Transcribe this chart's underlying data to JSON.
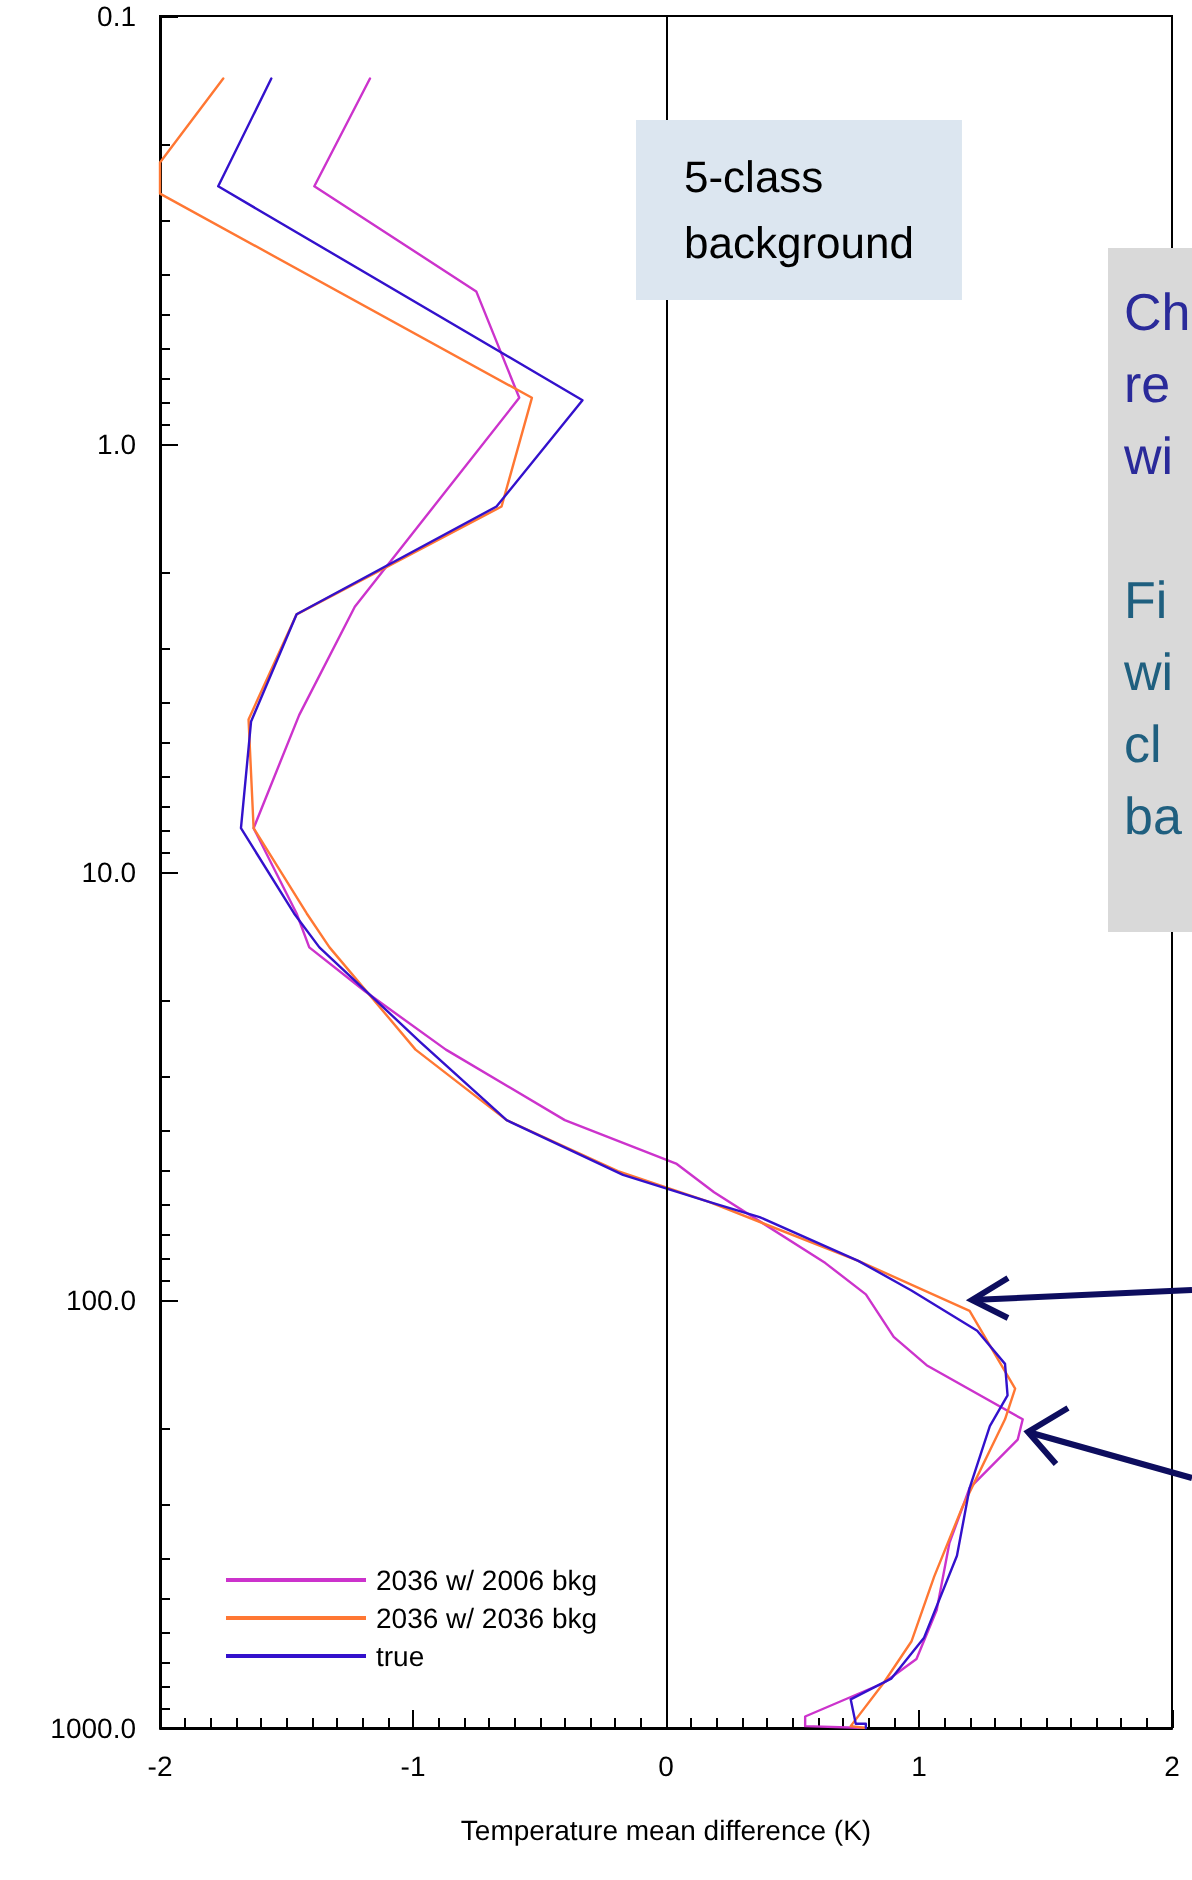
{
  "chart_data": {
    "type": "line",
    "xlabel": "Temperature mean difference (K)",
    "xlim": [
      -2,
      2
    ],
    "xticks": [
      -2,
      -1,
      0,
      1,
      2
    ],
    "ylim": [
      1000,
      0.1
    ],
    "yticks": [
      {
        "value": 0.1,
        "label": "0.1"
      },
      {
        "value": 1,
        "label": "1.0"
      },
      {
        "value": 10,
        "label": "10.0"
      },
      {
        "value": 100,
        "label": "100.0"
      },
      {
        "value": 1000,
        "label": "1000.0"
      }
    ],
    "log": "y",
    "grid": false,
    "legend": "bottom left",
    "marker": "none",
    "line_style": "solid",
    "ref_lines": [
      {
        "axis": "x",
        "value": 0,
        "color": "#000000"
      }
    ],
    "annotations": [
      "5-class background",
      "Ch re wi",
      "Fi wi cl ba"
    ],
    "series": [
      {
        "name": "2036 w/ 2006 bkg",
        "color": "#cc33cc",
        "x": [
          -1.17,
          -1.39,
          -0.75,
          -0.58,
          -1.23,
          -1.45,
          -1.63,
          -1.46,
          -1.41,
          -1.19,
          -0.87,
          -0.4,
          0.04,
          0.19,
          0.63,
          0.79,
          0.9,
          1.03,
          1.41,
          1.39,
          1.2,
          1.12,
          1.07,
          0.99,
          0.86,
          0.55,
          0.55,
          0.79
        ],
        "values": [
          0.14,
          0.25,
          0.44,
          0.78,
          2.4,
          4.3,
          7.9,
          12.5,
          15,
          19,
          26,
          38,
          48,
          56,
          82,
          97,
          122,
          142,
          190,
          212,
          275,
          370,
          530,
          690,
          785,
          940,
          990,
          1000
        ]
      },
      {
        "name": "2036 w/ 2036 bkg",
        "color": "#ff7733",
        "x": [
          -1.75,
          -2.0,
          -2.0,
          -0.53,
          -0.65,
          -1.46,
          -1.65,
          -1.63,
          -1.42,
          -1.33,
          -0.99,
          -0.63,
          -0.19,
          0.17,
          0.76,
          1.2,
          1.38,
          1.34,
          1.17,
          1.06,
          0.97,
          0.86,
          0.73,
          0.79
        ],
        "values": [
          0.14,
          0.22,
          0.26,
          0.78,
          1.4,
          2.5,
          4.4,
          7.9,
          12.5,
          15,
          26,
          38,
          50,
          59,
          81,
          106,
          161,
          190,
          306,
          443,
          628,
          785,
          990,
          1000
        ]
      },
      {
        "name": "true",
        "color": "#3311cc",
        "x": [
          -1.56,
          -1.77,
          -0.33,
          -0.67,
          -1.46,
          -1.64,
          -1.68,
          -1.47,
          -1.37,
          -0.97,
          -0.63,
          -0.17,
          0.17,
          0.37,
          0.76,
          0.97,
          1.23,
          1.34,
          1.35,
          1.28,
          1.2,
          1.15,
          1.02,
          0.89,
          0.73,
          0.75,
          0.79,
          0.79
        ],
        "values": [
          0.14,
          0.25,
          0.79,
          1.4,
          2.5,
          4.45,
          7.9,
          12.5,
          15,
          25,
          38,
          51,
          59,
          64,
          81,
          95,
          118,
          141,
          167,
          197,
          275,
          396,
          615,
          767,
          857,
          977,
          977,
          1000
        ]
      }
    ]
  }
}
